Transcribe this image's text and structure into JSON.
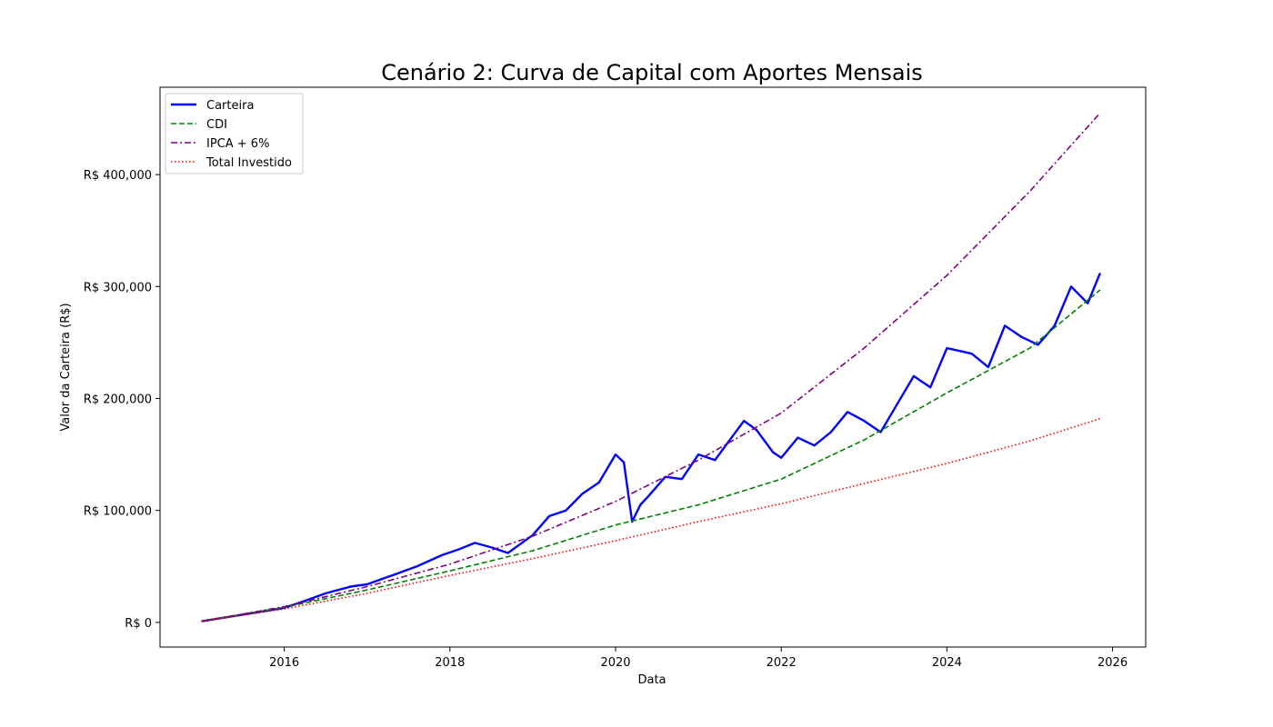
{
  "chart_data": {
    "type": "line",
    "title": "Cenário 2: Curva de Capital com Aportes Mensais",
    "xlabel": "Data",
    "ylabel": "Valor da Carteira (R$)",
    "xlim": [
      2014.5,
      2026.4
    ],
    "ylim": [
      -22000,
      478000
    ],
    "x_ticks": [
      2016,
      2018,
      2020,
      2022,
      2024,
      2026
    ],
    "x_tick_labels": [
      "2016",
      "2018",
      "2020",
      "2022",
      "2024",
      "2026"
    ],
    "y_ticks": [
      0,
      100000,
      200000,
      300000,
      400000
    ],
    "y_tick_labels": [
      "R$ 0",
      "R$ 100,000",
      "R$ 200,000",
      "R$ 300,000",
      "R$ 400,000"
    ],
    "grid": false,
    "legend_position": "top-left",
    "series": [
      {
        "name": "Carteira",
        "color": "#0000ff",
        "style": "solid",
        "x": [
          2015.0,
          2015.5,
          2016.0,
          2016.2,
          2016.5,
          2016.8,
          2017.0,
          2017.3,
          2017.6,
          2017.9,
          2018.1,
          2018.3,
          2018.5,
          2018.7,
          2019.0,
          2019.2,
          2019.4,
          2019.6,
          2019.8,
          2020.0,
          2020.1,
          2020.2,
          2020.3,
          2020.4,
          2020.6,
          2020.8,
          2021.0,
          2021.2,
          2021.4,
          2021.55,
          2021.7,
          2021.9,
          2022.0,
          2022.2,
          2022.4,
          2022.6,
          2022.8,
          2023.0,
          2023.2,
          2023.4,
          2023.6,
          2023.8,
          2024.0,
          2024.3,
          2024.5,
          2024.7,
          2024.9,
          2025.1,
          2025.3,
          2025.5,
          2025.7,
          2025.85
        ],
        "y": [
          1000,
          7000,
          13000,
          18000,
          26000,
          32000,
          34000,
          42000,
          50000,
          60000,
          65000,
          71000,
          67000,
          62000,
          78000,
          95000,
          100000,
          115000,
          125000,
          150000,
          143000,
          90000,
          105000,
          113000,
          130000,
          128000,
          150000,
          145000,
          165000,
          180000,
          172000,
          152000,
          147000,
          165000,
          158000,
          170000,
          188000,
          180000,
          170000,
          195000,
          220000,
          210000,
          245000,
          240000,
          228000,
          265000,
          255000,
          248000,
          265000,
          300000,
          285000,
          312000
        ]
      },
      {
        "name": "CDI",
        "color": "#008000",
        "style": "dashed",
        "x": [
          2015.0,
          2016.0,
          2017.0,
          2018.0,
          2019.0,
          2020.0,
          2021.0,
          2022.0,
          2023.0,
          2024.0,
          2025.0,
          2025.85
        ],
        "y": [
          1000,
          13500,
          29000,
          46000,
          64000,
          87000,
          105000,
          128000,
          163000,
          205000,
          245000,
          297000
        ]
      },
      {
        "name": "IPCA + 6%",
        "color": "#800080",
        "style": "dashdot",
        "x": [
          2015.0,
          2016.0,
          2017.0,
          2018.0,
          2019.0,
          2020.0,
          2021.0,
          2022.0,
          2023.0,
          2024.0,
          2025.0,
          2025.85
        ],
        "y": [
          1000,
          14000,
          32000,
          52000,
          77000,
          108000,
          145000,
          187000,
          245000,
          310000,
          385000,
          455000
        ]
      },
      {
        "name": "Total Investido",
        "color": "#ff0000",
        "style": "dotted",
        "x": [
          2015.0,
          2016.0,
          2017.0,
          2018.0,
          2019.0,
          2020.0,
          2021.0,
          2022.0,
          2023.0,
          2024.0,
          2025.0,
          2025.85
        ],
        "y": [
          1000,
          12000,
          26000,
          42000,
          57000,
          73000,
          90000,
          106000,
          124000,
          142000,
          162000,
          182000
        ]
      }
    ]
  }
}
